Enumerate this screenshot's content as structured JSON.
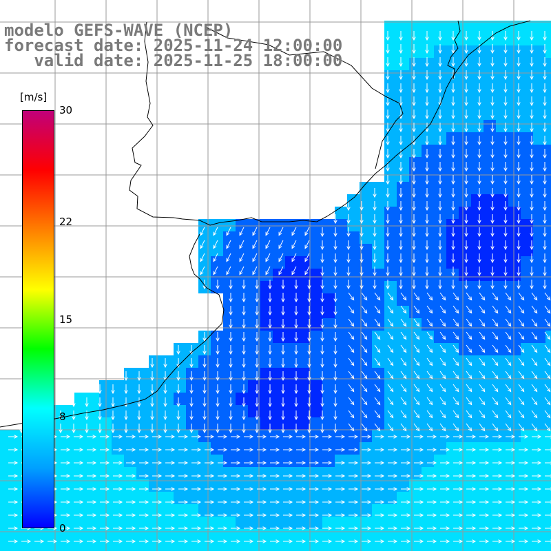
{
  "title": {
    "model": "modelo GEFS-WAVE (NCEP)",
    "forecast": "forecast date: 2025-11-24 12:00:00",
    "valid": "   valid date: 2025-11-25 18:00:00"
  },
  "colorbar": {
    "unit": "[m/s]",
    "min": 0,
    "max": 30,
    "ticks": [
      {
        "value": 30,
        "label": "30"
      },
      {
        "value": 22,
        "label": "22"
      },
      {
        "value": 15,
        "label": "15"
      },
      {
        "value": 8,
        "label": "8"
      },
      {
        "value": 0,
        "label": "0"
      }
    ],
    "colors": [
      "#0000ff",
      "#00a0ff",
      "#00ffff",
      "#00ff00",
      "#ffff00",
      "#ff8000",
      "#ff0000",
      "#c0007a"
    ]
  },
  "map": {
    "background": "#ffffff",
    "grid_color": "#999999",
    "coast_color": "#000000",
    "arrow_color": "#ffffff",
    "field_colors": {
      "deep": "#0028ff",
      "mid": "#0064ff",
      "light": "#00b4ff",
      "cyan": "#00e0ff",
      "green": "#2aff9a"
    }
  }
}
